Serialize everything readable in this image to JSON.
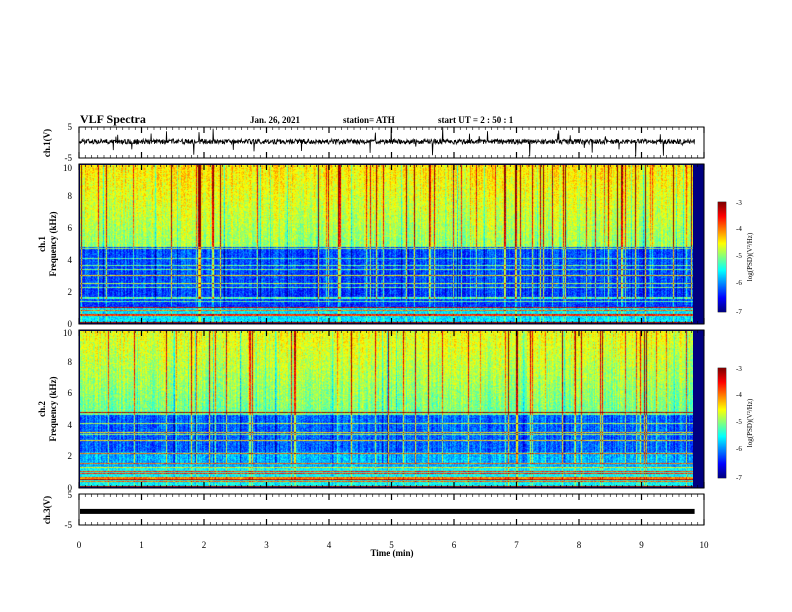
{
  "header": {
    "title": "VLF Spectra",
    "date": "Jan. 26, 2021",
    "station": "station= ATH",
    "start_time": "start  UT =  2 : 50 : 1"
  },
  "chart_data": [
    {
      "type": "line",
      "panel": "ch1-waveform",
      "ylabel": "ch.1(V)",
      "ylim": [
        -5,
        5
      ],
      "yticks": [
        5,
        -5
      ],
      "xlim": [
        0,
        10
      ],
      "baseline_v": 0.3,
      "noise_amplitude_v": 1.0,
      "color": "#000000"
    },
    {
      "type": "heatmap",
      "panel": "ch1-spectrogram",
      "ylabel": "ch.1",
      "ylabel2": "Frequency (kHz)",
      "ylim": [
        0,
        10
      ],
      "yticks": [
        0,
        2,
        4,
        6,
        8,
        10
      ],
      "xlim": [
        0,
        9.85
      ],
      "colorbar": {
        "label": "log(PSD)(V²/Hz)",
        "ticks": [
          -3,
          -4,
          -5,
          -6,
          -7
        ],
        "range": [
          -7,
          -3
        ]
      }
    },
    {
      "type": "heatmap",
      "panel": "ch2-spectrogram",
      "ylabel": "ch.2",
      "ylabel2": "Frequency (kHz)",
      "ylim": [
        0,
        10
      ],
      "yticks": [
        0,
        2,
        4,
        6,
        8,
        10
      ],
      "xlim": [
        0,
        9.85
      ],
      "colorbar": {
        "label": "log(PSD)(V²/Hz)",
        "ticks": [
          -3,
          -4,
          -5,
          -6,
          -7
        ],
        "range": [
          -7,
          -3
        ]
      }
    },
    {
      "type": "line",
      "panel": "ch3-waveform",
      "ylabel": "ch.3(V)",
      "ylim": [
        -5,
        5
      ],
      "yticks": [
        5,
        -5
      ],
      "xlim": [
        0,
        10
      ],
      "baseline_v": -0.6,
      "color": "#000000"
    }
  ],
  "xaxis": {
    "label": "Time (min)",
    "ticks": [
      0,
      1,
      2,
      3,
      4,
      5,
      6,
      7,
      8,
      9,
      10
    ]
  },
  "colors": {
    "waveform": "#000000",
    "frame": "#000000"
  }
}
